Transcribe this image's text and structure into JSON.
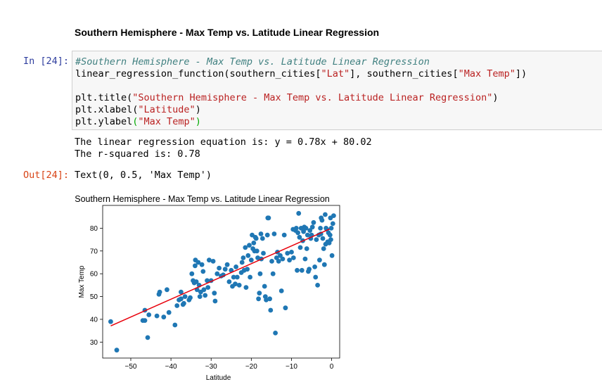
{
  "markdown": {
    "heading": "Southern Hemisphere - Max Temp vs. Latitude Linear Regression"
  },
  "input_cell": {
    "prompt": "In [24]:",
    "comment": "#Southern Hemisphere - Max Temp vs. Latitude Linear Regression",
    "line2": {
      "fn": "linear_regression_function(southern_cities[",
      "s1": "\"Lat\"",
      "mid": "], southern_cities[",
      "s2": "\"Max Temp\"",
      "end": "])"
    },
    "line4": {
      "fn": "plt.title(",
      "s": "\"Southern Hemisphere - Max Temp vs. Latitude Linear Regression\"",
      "end": ")"
    },
    "line5": {
      "fn": "plt.xlabel(",
      "s": "\"Latitude\"",
      "end": ")"
    },
    "line6": {
      "fn": "plt.ylabel",
      "open": "(",
      "s": "\"Max Temp\"",
      "close": ")"
    }
  },
  "stdout": {
    "equation": "The linear regression equation is: y = 0.78x + 80.02",
    "rsquared": "The r-squared is: 0.78"
  },
  "output_cell": {
    "prompt": "Out[24]:",
    "text": "Text(0, 0.5, 'Max Temp')"
  },
  "chart_data": {
    "type": "scatter",
    "title": "Southern Hemisphere - Max Temp vs. Latitude Linear Regression",
    "xlabel": "Latitude",
    "ylabel": "Max Temp",
    "xlim": [
      -57,
      2
    ],
    "ylim": [
      23,
      90
    ],
    "xticks": [
      -50,
      -40,
      -30,
      -20,
      -10,
      0
    ],
    "yticks": [
      30,
      40,
      50,
      60,
      70,
      80
    ],
    "grid": false,
    "point_color": "#1f77b4",
    "line_color": "#e8000b",
    "regression": {
      "slope": 0.78,
      "intercept": 80.02,
      "x_range": [
        -55.0,
        -0.5
      ]
    },
    "points": [
      [
        -55.0,
        39
      ],
      [
        -53.5,
        26.5
      ],
      [
        -47.0,
        39.5
      ],
      [
        -46.5,
        39.5
      ],
      [
        -46.5,
        44
      ],
      [
        -45.8,
        32
      ],
      [
        -45.5,
        42
      ],
      [
        -43.5,
        41.5
      ],
      [
        -43.0,
        51
      ],
      [
        -42.8,
        52
      ],
      [
        -41.8,
        41
      ],
      [
        -41.0,
        53
      ],
      [
        -40.5,
        43
      ],
      [
        -39.0,
        37.5
      ],
      [
        -38.5,
        46
      ],
      [
        -38.0,
        48.5
      ],
      [
        -37.5,
        49
      ],
      [
        -37.5,
        52
      ],
      [
        -36.8,
        47
      ],
      [
        -36.5,
        50
      ],
      [
        -35.5,
        48.5
      ],
      [
        -35.2,
        49.5
      ],
      [
        -34.8,
        60
      ],
      [
        -34.5,
        57
      ],
      [
        -34.2,
        56
      ],
      [
        -34.0,
        63.5
      ],
      [
        -33.9,
        66
      ],
      [
        -33.5,
        53
      ],
      [
        -33.2,
        65
      ],
      [
        -33.0,
        55
      ],
      [
        -32.8,
        50
      ],
      [
        -32.6,
        52
      ],
      [
        -32.3,
        64
      ],
      [
        -32.0,
        61
      ],
      [
        -31.8,
        53
      ],
      [
        -31.5,
        50.5
      ],
      [
        -31.0,
        57
      ],
      [
        -30.5,
        66
      ],
      [
        -30.0,
        57
      ],
      [
        -29.5,
        65.5
      ],
      [
        -29.2,
        51.5
      ],
      [
        -29.0,
        48
      ],
      [
        -28.5,
        60
      ],
      [
        -28.0,
        62.5
      ],
      [
        -27.5,
        59
      ],
      [
        -27.0,
        59.5
      ],
      [
        -26.0,
        64
      ],
      [
        -25.5,
        56.5
      ],
      [
        -25.0,
        61.5
      ],
      [
        -24.7,
        54.5
      ],
      [
        -24.4,
        58.5
      ],
      [
        -24.0,
        55.5
      ],
      [
        -23.8,
        63
      ],
      [
        -23.5,
        58.5
      ],
      [
        -23.0,
        55
      ],
      [
        -22.5,
        60.5
      ],
      [
        -22.3,
        65
      ],
      [
        -22.0,
        67
      ],
      [
        -21.8,
        61.5
      ],
      [
        -21.5,
        71.5
      ],
      [
        -21.3,
        54
      ],
      [
        -21.0,
        62
      ],
      [
        -20.8,
        68
      ],
      [
        -20.5,
        72.5
      ],
      [
        -20.3,
        58.5
      ],
      [
        -20.0,
        66
      ],
      [
        -19.8,
        77
      ],
      [
        -19.6,
        71
      ],
      [
        -19.4,
        73.5
      ],
      [
        -19.2,
        70
      ],
      [
        -19.0,
        76
      ],
      [
        -18.8,
        75.5
      ],
      [
        -18.6,
        70
      ],
      [
        -18.4,
        67
      ],
      [
        -18.2,
        49
      ],
      [
        -18.0,
        51.5
      ],
      [
        -17.8,
        60
      ],
      [
        -17.5,
        66.5
      ],
      [
        -17.2,
        75.5
      ],
      [
        -17.0,
        69
      ],
      [
        -16.7,
        54.5
      ],
      [
        -16.5,
        50
      ],
      [
        -16.3,
        48.5
      ],
      [
        -16.0,
        77
      ],
      [
        -15.9,
        84.5
      ],
      [
        -15.7,
        84.5
      ],
      [
        -15.4,
        49
      ],
      [
        -15.2,
        44
      ],
      [
        -14.9,
        65.5
      ],
      [
        -14.6,
        60
      ],
      [
        -14.3,
        77.5
      ],
      [
        -14.0,
        34
      ],
      [
        -13.7,
        67
      ],
      [
        -13.5,
        69.5
      ],
      [
        -13.2,
        65.5
      ],
      [
        -12.8,
        68
      ],
      [
        -12.5,
        52.5
      ],
      [
        -12.2,
        66.5
      ],
      [
        -11.8,
        77
      ],
      [
        -11.5,
        45
      ],
      [
        -11.0,
        69
      ],
      [
        -10.5,
        66
      ],
      [
        -10.0,
        69.5
      ],
      [
        -9.5,
        67
      ],
      [
        -9.0,
        79
      ],
      [
        -8.8,
        80
      ],
      [
        -8.6,
        61.5
      ],
      [
        -8.4,
        78
      ],
      [
        -8.2,
        86.5
      ],
      [
        -8.0,
        76
      ],
      [
        -7.8,
        71.5
      ],
      [
        -7.6,
        80
      ],
      [
        -7.4,
        61.5
      ],
      [
        -7.2,
        74.5
      ],
      [
        -7.0,
        78.5
      ],
      [
        -6.8,
        80.5
      ],
      [
        -6.6,
        66.5
      ],
      [
        -6.4,
        80
      ],
      [
        -6.2,
        71
      ],
      [
        -6.0,
        77
      ],
      [
        -5.8,
        61
      ],
      [
        -5.6,
        62
      ],
      [
        -5.4,
        79
      ],
      [
        -5.2,
        75.5
      ],
      [
        -5.0,
        77
      ],
      [
        -4.8,
        80.5
      ],
      [
        -4.5,
        82.5
      ],
      [
        -4.2,
        63
      ],
      [
        -4.0,
        58.5
      ],
      [
        -3.8,
        75
      ],
      [
        -3.5,
        55
      ],
      [
        -3.2,
        77
      ],
      [
        -3.0,
        66
      ],
      [
        -2.8,
        80
      ],
      [
        -2.6,
        84.5
      ],
      [
        -2.4,
        83.5
      ],
      [
        -2.2,
        75.5
      ],
      [
        -2.0,
        71
      ],
      [
        -1.8,
        64
      ],
      [
        -1.6,
        86
      ],
      [
        -1.4,
        80
      ],
      [
        -1.2,
        79.5
      ],
      [
        -1.0,
        74
      ],
      [
        -0.8,
        78
      ],
      [
        -0.6,
        73.5
      ],
      [
        -0.4,
        77
      ],
      [
        -0.3,
        84.5
      ],
      [
        -0.2,
        75
      ],
      [
        -0.1,
        80
      ],
      [
        0.1,
        68
      ],
      [
        0.3,
        82
      ],
      [
        0.5,
        85.5
      ],
      [
        -1.5,
        73
      ],
      [
        -2.7,
        77.5
      ],
      [
        -9.6,
        79.5
      ],
      [
        -17.6,
        77.5
      ],
      [
        -26.5,
        62
      ],
      [
        -30.8,
        54
      ],
      [
        -37.0,
        46.5
      ],
      [
        -33.7,
        56.5
      ]
    ]
  }
}
